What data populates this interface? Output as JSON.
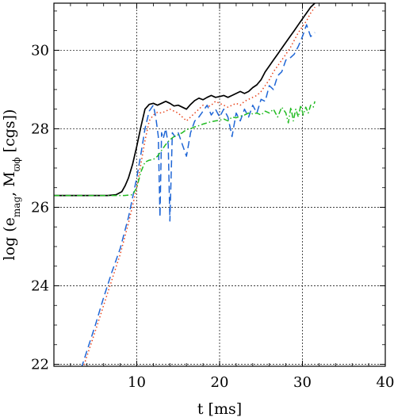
{
  "chart_data": {
    "type": "line",
    "title": "",
    "xlabel": "t [ms]",
    "ylabel": {
      "prefix": "log (e",
      "sub1": "mag",
      "mid": ", M",
      "sub2": "ϖϕ",
      "suffix": " [cgs])"
    },
    "xlim": [
      0,
      40
    ],
    "ylim": [
      21.95,
      31.2
    ],
    "xticks": [
      10,
      20,
      30,
      40
    ],
    "yticks": [
      22,
      24,
      26,
      28,
      30
    ],
    "grid": true,
    "legend": "none",
    "series": [
      {
        "color": "#000000",
        "dash": "solid",
        "x": [
          0,
          5,
          6.5,
          7.5,
          8.2,
          8.6,
          9,
          9.5,
          10,
          10.5,
          11,
          11.5,
          12,
          12.5,
          13,
          13.5,
          14,
          14.5,
          15,
          15.5,
          16,
          16.5,
          17,
          17.5,
          18,
          18.5,
          19,
          19.5,
          20,
          20.5,
          21,
          21.5,
          22,
          22.5,
          23,
          23.5,
          24,
          24.5,
          25,
          25.5,
          26,
          26.5,
          27,
          27.5,
          28,
          28.5,
          29,
          29.5,
          30,
          30.5,
          31,
          31.5
        ],
        "y": [
          26.3,
          26.3,
          26.3,
          26.32,
          26.4,
          26.55,
          26.75,
          27.1,
          27.55,
          28.05,
          28.5,
          28.62,
          28.65,
          28.6,
          28.65,
          28.7,
          28.65,
          28.58,
          28.6,
          28.55,
          28.5,
          28.62,
          28.72,
          28.78,
          28.74,
          28.8,
          28.85,
          28.8,
          28.82,
          28.85,
          28.8,
          28.85,
          28.9,
          28.95,
          28.9,
          28.95,
          29.05,
          29.12,
          29.25,
          29.45,
          29.6,
          29.75,
          29.9,
          30.05,
          30.2,
          30.35,
          30.5,
          30.65,
          30.8,
          30.95,
          31.1,
          31.2
        ]
      },
      {
        "color": "#e8421a",
        "dash": "dotted",
        "x": [
          3.5,
          5,
          6,
          7,
          8,
          9,
          10,
          10.5,
          11,
          11.5,
          12,
          12.5,
          13,
          13.5,
          14,
          14.5,
          15,
          15.5,
          16,
          16.5,
          17,
          17.5,
          18,
          18.5,
          19,
          19.5,
          20,
          20.5,
          21,
          21.5,
          22,
          22.5,
          23,
          23.5,
          24,
          24.5,
          25,
          25.5,
          26,
          26.5,
          27,
          27.5,
          28,
          28.5,
          29,
          29.5,
          30,
          30.5,
          31,
          31.5
        ],
        "y": [
          21.9,
          22.85,
          23.5,
          24.15,
          24.8,
          25.6,
          26.5,
          27.1,
          27.7,
          28.2,
          28.35,
          28.42,
          28.4,
          28.45,
          28.5,
          28.45,
          28.4,
          28.3,
          28.2,
          28.3,
          28.4,
          28.5,
          28.6,
          28.55,
          28.6,
          28.7,
          28.65,
          28.6,
          28.55,
          28.6,
          28.65,
          28.6,
          28.7,
          28.75,
          28.8,
          28.85,
          28.95,
          29.1,
          29.25,
          29.45,
          29.6,
          29.75,
          29.9,
          30.05,
          30.25,
          30.45,
          30.6,
          30.75,
          30.95,
          31.1
        ]
      },
      {
        "color": "#1f66d6",
        "dash": "dashed",
        "x": [
          3.3,
          5,
          6,
          7,
          8,
          9,
          10,
          10.5,
          11,
          11.5,
          12,
          12.3,
          12.6,
          12.8,
          13,
          13.2,
          13.5,
          13.8,
          14,
          14.3,
          14.6,
          15,
          15.5,
          16,
          16.5,
          17,
          17.5,
          18,
          18.5,
          19,
          19.5,
          20,
          20.5,
          21,
          21.5,
          22,
          22.5,
          23,
          23.5,
          24,
          24.5,
          25,
          25.5,
          26,
          26.5,
          27,
          27.5,
          28,
          28.5,
          29,
          29.5,
          30,
          30.5,
          31,
          31.5
        ],
        "y": [
          21.9,
          23,
          23.7,
          24.35,
          24.95,
          25.75,
          26.75,
          27.35,
          28.0,
          28.45,
          28.6,
          28.3,
          27.8,
          25.75,
          27.9,
          27.75,
          28.0,
          27.6,
          25.65,
          27.9,
          27.8,
          27.9,
          27.6,
          27.3,
          27.9,
          28.2,
          28.3,
          28.45,
          28.6,
          28.35,
          28.5,
          28.3,
          28.5,
          28.3,
          27.8,
          28.4,
          28.2,
          28.5,
          28.3,
          28.6,
          28.4,
          28.75,
          28.7,
          29.1,
          29.0,
          29.35,
          29.45,
          29.75,
          29.8,
          29.9,
          30.1,
          30.35,
          30.65,
          30.35,
          30.45
        ]
      },
      {
        "color": "#22bb22",
        "dash": "dashdot",
        "x": [
          0,
          5,
          7,
          8.5,
          9.5,
          10,
          10.5,
          11,
          11.5,
          12,
          12.5,
          13,
          13.5,
          14,
          14.5,
          15,
          15.5,
          16,
          16.5,
          17,
          17.5,
          18,
          18.5,
          19,
          19.5,
          20,
          20.5,
          21,
          21.5,
          22,
          22.5,
          23,
          23.5,
          24,
          24.5,
          25,
          25.5,
          26,
          26.5,
          27,
          27.5,
          28,
          28.3,
          28.6,
          28.9,
          29.2,
          29.5,
          29.8,
          30.1,
          30.4,
          30.7,
          31,
          31.3,
          31.5
        ],
        "y": [
          26.3,
          26.3,
          26.3,
          26.3,
          26.32,
          26.5,
          26.9,
          27.15,
          27.2,
          27.22,
          27.3,
          27.45,
          27.6,
          27.72,
          27.8,
          27.85,
          27.9,
          27.98,
          28.0,
          28.05,
          28.08,
          28.12,
          28.15,
          28.18,
          28.2,
          28.22,
          28.25,
          28.2,
          28.3,
          28.28,
          28.32,
          28.35,
          28.4,
          28.38,
          28.4,
          28.35,
          28.45,
          28.4,
          28.5,
          28.3,
          28.55,
          28.4,
          28.15,
          28.55,
          28.2,
          28.5,
          28.3,
          28.6,
          28.35,
          28.55,
          28.4,
          28.6,
          28.55,
          28.7
        ]
      }
    ]
  }
}
